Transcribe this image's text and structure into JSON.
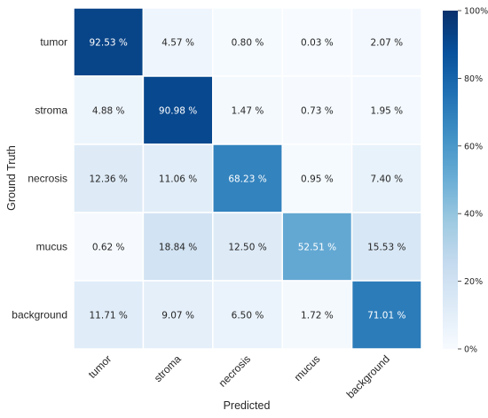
{
  "chart_data": {
    "type": "heatmap",
    "xlabel": "Predicted",
    "ylabel": "Ground Truth",
    "x_categories": [
      "tumor",
      "stroma",
      "necrosis",
      "mucus",
      "background"
    ],
    "y_categories": [
      "tumor",
      "stroma",
      "necrosis",
      "mucus",
      "background"
    ],
    "values": [
      [
        92.53,
        4.57,
        0.8,
        0.03,
        2.07
      ],
      [
        4.88,
        90.98,
        1.47,
        0.73,
        1.95
      ],
      [
        12.36,
        11.06,
        68.23,
        0.95,
        7.4
      ],
      [
        0.62,
        18.84,
        12.5,
        52.51,
        15.53
      ],
      [
        11.71,
        9.07,
        6.5,
        1.72,
        71.01
      ]
    ],
    "value_labels": [
      [
        "92.53 %",
        "4.57 %",
        "0.80 %",
        "0.03 %",
        "2.07 %"
      ],
      [
        "4.88 %",
        "90.98 %",
        "1.47 %",
        "0.73 %",
        "1.95 %"
      ],
      [
        "12.36 %",
        "11.06 %",
        "68.23 %",
        "0.95 %",
        "7.40 %"
      ],
      [
        "0.62 %",
        "18.84 %",
        "12.50 %",
        "52.51 %",
        "15.53 %"
      ],
      [
        "11.71 %",
        "9.07 %",
        "6.50 %",
        "1.72 %",
        "71.01 %"
      ]
    ],
    "colorbar": {
      "range": [
        0,
        100
      ],
      "ticks": [
        0,
        20,
        40,
        60,
        80,
        100
      ],
      "tick_labels": [
        "0%",
        "20%",
        "40%",
        "60%",
        "80%",
        "100%"
      ]
    },
    "colormap": "Blues",
    "grid": false
  }
}
